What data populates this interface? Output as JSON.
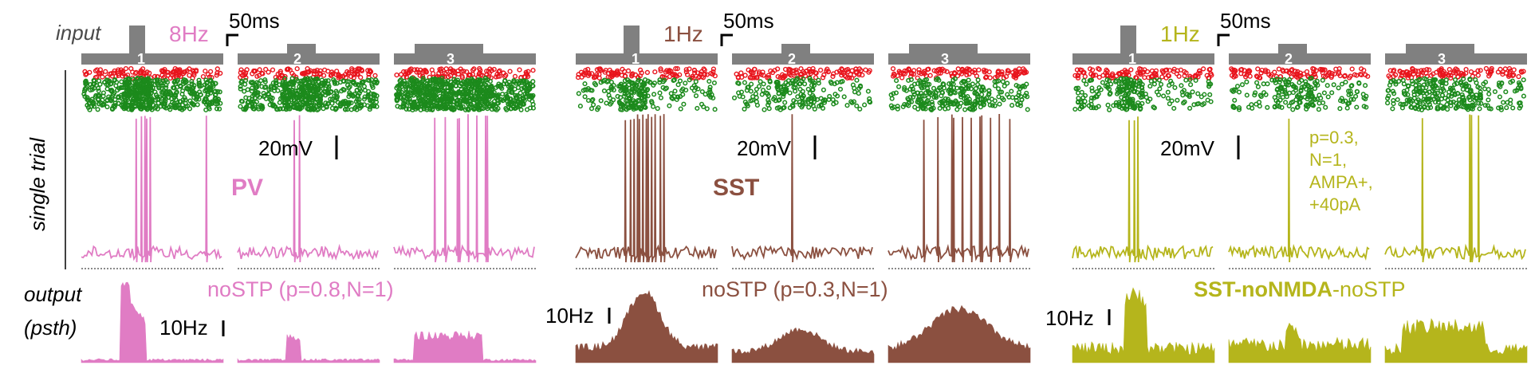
{
  "row_labels": {
    "input": "input",
    "single_trial": "single trial",
    "output_line1": "output",
    "output_line2": "(psth)"
  },
  "stimulus_numbers": [
    "1",
    "2",
    "3"
  ],
  "scale_bars": {
    "time": "50ms",
    "voltage": "20mV",
    "rate": "10Hz"
  },
  "panels": [
    {
      "id": "pv",
      "frequency": "8Hz",
      "cell_label": "PV",
      "condition": "noSTP (p=0.8,N=1)",
      "color": "#e07cc4",
      "raster_density": "high",
      "psth_shape": "sharp-onset-transient"
    },
    {
      "id": "sst",
      "frequency": "1Hz",
      "cell_label": "SST",
      "condition": "noSTP (p=0.3,N=1)",
      "color": "#8b5040",
      "raster_density": "low",
      "psth_shape": "broad-ramp"
    },
    {
      "id": "sst-nonmda",
      "frequency": "1Hz",
      "cell_label": "",
      "condition_bold": "SST-noNMDA",
      "condition_rest": "-noSTP",
      "params": [
        "p=0.3,",
        "N=1,",
        "AMPA+,",
        "+40pA"
      ],
      "color": "#b5b51c",
      "raster_density": "low",
      "psth_shape": "onset-transient"
    }
  ],
  "colors": {
    "stimulus_bar": "#808080",
    "raster_inhibitory": "#e8141c",
    "raster_excitatory": "#1c8a1c",
    "text_dark": "#000000",
    "label_gray": "#4a4a4a"
  }
}
